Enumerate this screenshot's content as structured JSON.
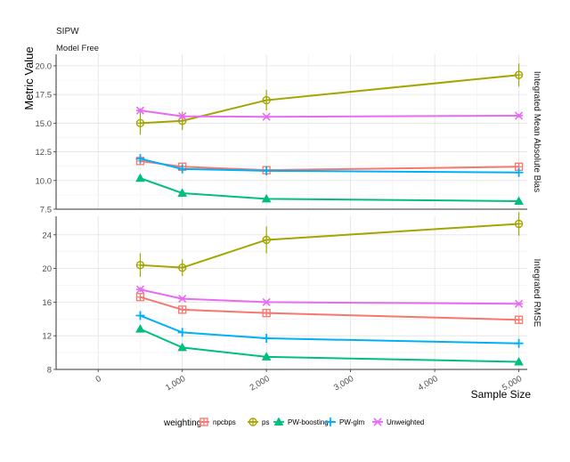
{
  "chart_data": {
    "type": "line",
    "title": "SIPW",
    "subtitle": "Model Free",
    "ylabel": "Metric Value",
    "xlabel": "Sample Size",
    "x_ticks": [
      0,
      1000,
      2000,
      3000,
      4000,
      5000
    ],
    "x_tick_labels": [
      "0",
      "1,000",
      "2,000",
      "3,000",
      "4,000",
      "5,000"
    ],
    "xlim": [
      -500,
      5100
    ],
    "legend_title": "weighting",
    "legend_position": "bottom",
    "grid": true,
    "series_meta": [
      {
        "name": "npcbps",
        "color": "#F8766D",
        "marker": "square-plus"
      },
      {
        "name": "ps",
        "color": "#A3A500",
        "marker": "circle-plus"
      },
      {
        "name": "PW-boosting",
        "color": "#00BF7D",
        "marker": "triangle"
      },
      {
        "name": "PW-glm",
        "color": "#00B0F6",
        "marker": "plus"
      },
      {
        "name": "Unweighted",
        "color": "#E76BF3",
        "marker": "asterisk"
      }
    ],
    "panels": [
      {
        "strip": "Integrated Mean Absolute Bias",
        "ylim": [
          7.5,
          21
        ],
        "y_ticks": [
          7.5,
          10.0,
          12.5,
          15.0,
          17.5,
          20.0
        ],
        "y_tick_labels": [
          "7.5",
          "10.0",
          "12.5",
          "15.0",
          "17.5",
          "20.0"
        ],
        "x": [
          500,
          1000,
          2000,
          5000
        ],
        "series": [
          {
            "name": "npcbps",
            "values": [
              11.7,
              11.2,
              10.9,
              11.2
            ],
            "err": [
              0.3,
              0.3,
              0.3,
              0.3
            ]
          },
          {
            "name": "ps",
            "values": [
              15.0,
              15.2,
              17.0,
              19.2
            ],
            "err": [
              1.0,
              0.8,
              0.9,
              1.0
            ]
          },
          {
            "name": "PW-boosting",
            "values": [
              10.2,
              8.9,
              8.4,
              8.2
            ],
            "err": [
              0.3,
              0.2,
              0.2,
              0.2
            ]
          },
          {
            "name": "PW-glm",
            "values": [
              11.9,
              11.0,
              10.85,
              10.7
            ],
            "err": [
              0.4,
              0.3,
              0.2,
              0.2
            ]
          },
          {
            "name": "Unweighted",
            "values": [
              16.1,
              15.6,
              15.55,
              15.65
            ],
            "err": [
              0.2,
              0.2,
              0.15,
              0.15
            ]
          }
        ]
      },
      {
        "strip": "Integrated RMSE",
        "ylim": [
          8,
          26.2
        ],
        "y_ticks": [
          8,
          12,
          16,
          20,
          24
        ],
        "y_tick_labels": [
          "8",
          "12",
          "16",
          "20",
          "24"
        ],
        "x": [
          500,
          1000,
          2000,
          5000
        ],
        "series": [
          {
            "name": "npcbps",
            "values": [
              16.6,
              15.1,
              14.7,
              13.9
            ],
            "err": [
              0.4,
              0.3,
              0.3,
              0.3
            ]
          },
          {
            "name": "ps",
            "values": [
              20.4,
              20.1,
              23.4,
              25.3
            ],
            "err": [
              1.4,
              1.0,
              1.6,
              1.4
            ]
          },
          {
            "name": "PW-boosting",
            "values": [
              12.8,
              10.6,
              9.5,
              8.9
            ],
            "err": [
              0.3,
              0.2,
              0.2,
              0.2
            ]
          },
          {
            "name": "PW-glm",
            "values": [
              14.4,
              12.4,
              11.7,
              11.1
            ],
            "err": [
              0.4,
              0.3,
              0.2,
              0.2
            ]
          },
          {
            "name": "Unweighted",
            "values": [
              17.5,
              16.4,
              16.0,
              15.8
            ],
            "err": [
              0.3,
              0.2,
              0.2,
              0.2
            ]
          }
        ]
      }
    ]
  }
}
